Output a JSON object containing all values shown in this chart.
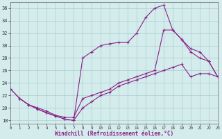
{
  "bg_color": "#d4ecec",
  "grid_color": "#a8ccd0",
  "line_color": "#882288",
  "xlabel": "Windchill (Refroidissement éolien,°C)",
  "xlim": [
    0,
    23
  ],
  "ylim": [
    17.5,
    37.0
  ],
  "yticks": [
    18,
    20,
    22,
    24,
    26,
    28,
    30,
    32,
    34,
    36
  ],
  "xticks": [
    0,
    1,
    2,
    3,
    4,
    5,
    6,
    7,
    8,
    9,
    10,
    11,
    12,
    13,
    14,
    15,
    16,
    17,
    18,
    19,
    20,
    21,
    22,
    23
  ],
  "line1_x": [
    0,
    1,
    2,
    3,
    4,
    5,
    6,
    7,
    8,
    9,
    10,
    11,
    12,
    13,
    14,
    15,
    16,
    17,
    18,
    19,
    20,
    21,
    22,
    23
  ],
  "line1_y": [
    23.0,
    21.5,
    20.5,
    19.8,
    19.2,
    18.7,
    18.2,
    18.0,
    28.0,
    29.0,
    30.0,
    30.3,
    30.5,
    30.5,
    32.0,
    34.5,
    36.0,
    36.5,
    32.5,
    31.0,
    29.0,
    28.0,
    27.5,
    25.0
  ],
  "line2_x": [
    0,
    1,
    2,
    3,
    4,
    5,
    6,
    7,
    8,
    9,
    10,
    11,
    12,
    13,
    14,
    15,
    16,
    17,
    18,
    19,
    20,
    21,
    22,
    23
  ],
  "line2_y": [
    23.0,
    21.5,
    20.5,
    19.8,
    19.2,
    18.7,
    18.2,
    18.0,
    20.0,
    21.0,
    22.0,
    22.5,
    23.5,
    24.0,
    24.5,
    25.0,
    25.5,
    26.0,
    26.5,
    27.0,
    25.0,
    25.5,
    25.5,
    25.0
  ],
  "line3_x": [
    1,
    2,
    3,
    4,
    5,
    6,
    7,
    8,
    9,
    10,
    11,
    12,
    13,
    14,
    15,
    16,
    17,
    18,
    19,
    20,
    21,
    22,
    23
  ],
  "line3_y": [
    21.5,
    20.5,
    20.0,
    19.5,
    18.8,
    18.5,
    18.5,
    21.5,
    22.0,
    22.5,
    23.0,
    24.0,
    24.5,
    25.0,
    25.5,
    26.0,
    32.5,
    32.5,
    31.0,
    29.5,
    29.0,
    27.5,
    25.0
  ]
}
